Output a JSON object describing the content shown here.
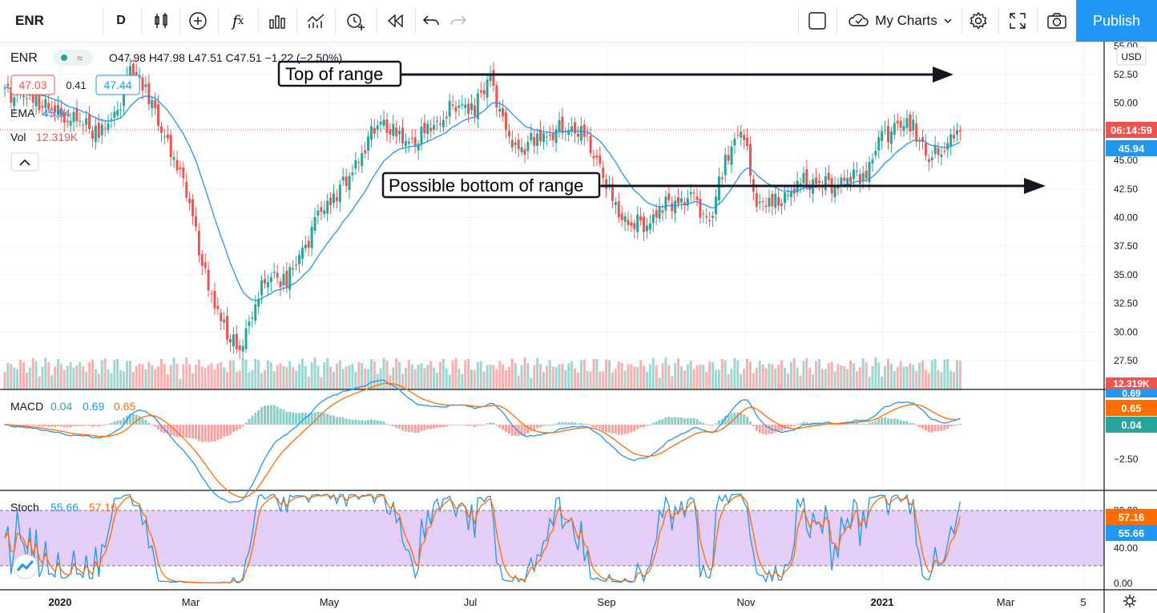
{
  "toolbar": {
    "symbol": "ENR",
    "interval": "D",
    "my_charts": "My Charts",
    "publish": "Publish",
    "icons": [
      "candles-icon",
      "add-indicator-icon",
      "fx-icon",
      "bars-icon",
      "compare-icon",
      "alert-icon",
      "replay-icon",
      "undo-icon",
      "redo-icon",
      "layout-icon",
      "cloud-icon",
      "settings-icon",
      "fullscreen-icon",
      "camera-icon"
    ]
  },
  "legend": {
    "symbol": "ENR",
    "ohlc": "O47.98 H47.98 L47.51 C47.51 −1.22 (−2.50%)",
    "bid": "47.03",
    "spread": "0.41",
    "ask": "47.44",
    "ema_label": "EMA",
    "ema_value": "45.94",
    "vol_label": "Vol",
    "vol_value": "12.319K",
    "macd_label": "MACD",
    "macd_hist": "0.04",
    "macd_line": "0.69",
    "macd_signal": "0.65",
    "stoch_label": "Stoch",
    "stoch_k": "55.66",
    "stoch_d": "57.16"
  },
  "price_axis": {
    "currency": "USD",
    "ticks": [
      "55.00",
      "52.50",
      "50.00",
      "47.50",
      "45.00",
      "42.50",
      "40.00",
      "37.50",
      "35.00",
      "32.50",
      "30.00",
      "27.50"
    ],
    "last_price_countdown": "06:14:59",
    "ema_tag": "45.94",
    "volume_tag": "12.319K"
  },
  "macd_axis": {
    "ticks": [
      "−2.50"
    ],
    "tags": [
      "0.69",
      "0.65",
      "0.04"
    ]
  },
  "stoch_axis": {
    "ticks": [
      "80.00",
      "40.00",
      "0.00"
    ],
    "tags": [
      "57.16",
      "55.66"
    ]
  },
  "time_axis": [
    "2020",
    "Mar",
    "May",
    "Jul",
    "Sep",
    "Nov",
    "2021",
    "Mar",
    "5"
  ],
  "annotations": {
    "top": "Top of range",
    "bottom": "Possible bottom of range"
  },
  "colors": {
    "up": "#26a69a",
    "down": "#ef5350",
    "ema": "#2196f3",
    "macd": "#2196f3",
    "signal": "#ff6d00",
    "stoch_band": "#e1c5f7",
    "accent": "#2196f3"
  },
  "chart_data": {
    "type": "candlestick",
    "symbol": "ENR",
    "interval": "D",
    "ylim": [
      26,
      55
    ],
    "price_scale_ticks": [
      27.5,
      30,
      32.5,
      35,
      37.5,
      40,
      42.5,
      45,
      47.5,
      50,
      52.5,
      55
    ],
    "time_labels": [
      "2020",
      "Mar",
      "May",
      "Jul",
      "Sep",
      "Nov",
      "2021",
      "Mar",
      "5"
    ],
    "weekly_close_path": [
      [
        "2019-12-16",
        51.0
      ],
      [
        "2019-12-23",
        50.6
      ],
      [
        "2019-12-30",
        50.3
      ],
      [
        "2020-01-06",
        49.4
      ],
      [
        "2020-01-13",
        49.0
      ],
      [
        "2020-01-20",
        48.2
      ],
      [
        "2020-01-27",
        47.4
      ],
      [
        "2020-02-03",
        48.6
      ],
      [
        "2020-02-10",
        52.8
      ],
      [
        "2020-02-17",
        51.6
      ],
      [
        "2020-02-24",
        47.5
      ],
      [
        "2020-03-02",
        45.0
      ],
      [
        "2020-03-09",
        40.0
      ],
      [
        "2020-03-16",
        33.5
      ],
      [
        "2020-03-23",
        30.5
      ],
      [
        "2020-03-30",
        28.0
      ],
      [
        "2020-04-06",
        33.0
      ],
      [
        "2020-04-13",
        35.0
      ],
      [
        "2020-04-20",
        34.5
      ],
      [
        "2020-04-27",
        37.0
      ],
      [
        "2020-05-04",
        40.0
      ],
      [
        "2020-05-11",
        42.0
      ],
      [
        "2020-05-18",
        43.5
      ],
      [
        "2020-05-25",
        46.5
      ],
      [
        "2020-06-01",
        48.5
      ],
      [
        "2020-06-08",
        47.0
      ],
      [
        "2020-06-15",
        46.5
      ],
      [
        "2020-06-22",
        47.5
      ],
      [
        "2020-06-29",
        49.0
      ],
      [
        "2020-07-06",
        50.0
      ],
      [
        "2020-07-13",
        49.5
      ],
      [
        "2020-07-20",
        52.5
      ],
      [
        "2020-07-27",
        47.0
      ],
      [
        "2020-08-03",
        46.0
      ],
      [
        "2020-08-10",
        47.0
      ],
      [
        "2020-08-17",
        47.5
      ],
      [
        "2020-08-24",
        48.0
      ],
      [
        "2020-08-31",
        47.0
      ],
      [
        "2020-09-07",
        44.5
      ],
      [
        "2020-09-14",
        40.5
      ],
      [
        "2020-09-21",
        39.5
      ],
      [
        "2020-09-28",
        39.5
      ],
      [
        "2020-10-05",
        41.0
      ],
      [
        "2020-10-12",
        41.5
      ],
      [
        "2020-10-19",
        41.5
      ],
      [
        "2020-10-26",
        39.5
      ],
      [
        "2020-11-02",
        45.0
      ],
      [
        "2020-11-09",
        48.0
      ],
      [
        "2020-11-16",
        41.5
      ],
      [
        "2020-11-23",
        41.0
      ],
      [
        "2020-11-30",
        42.0
      ],
      [
        "2020-12-07",
        43.0
      ],
      [
        "2020-12-14",
        43.0
      ],
      [
        "2020-12-21",
        43.0
      ],
      [
        "2020-12-28",
        43.5
      ],
      [
        "2021-01-04",
        44.0
      ],
      [
        "2021-01-11",
        47.0
      ],
      [
        "2021-01-18",
        48.0
      ],
      [
        "2021-01-25",
        48.0
      ],
      [
        "2021-02-01",
        45.0
      ],
      [
        "2021-02-08",
        46.5
      ],
      [
        "2021-02-15",
        47.51
      ]
    ],
    "annotations": [
      {
        "text": "Top of range",
        "price": 52.5
      },
      {
        "text": "Possible bottom of range",
        "price": 42.5
      }
    ],
    "ema_last": 45.94,
    "last_close": 47.51,
    "indicators": {
      "macd": {
        "hist": 0.04,
        "macd": 0.69,
        "signal": 0.65
      },
      "stochastic": {
        "k": 55.66,
        "d": 57.16,
        "bands": [
          20,
          80
        ]
      }
    }
  }
}
